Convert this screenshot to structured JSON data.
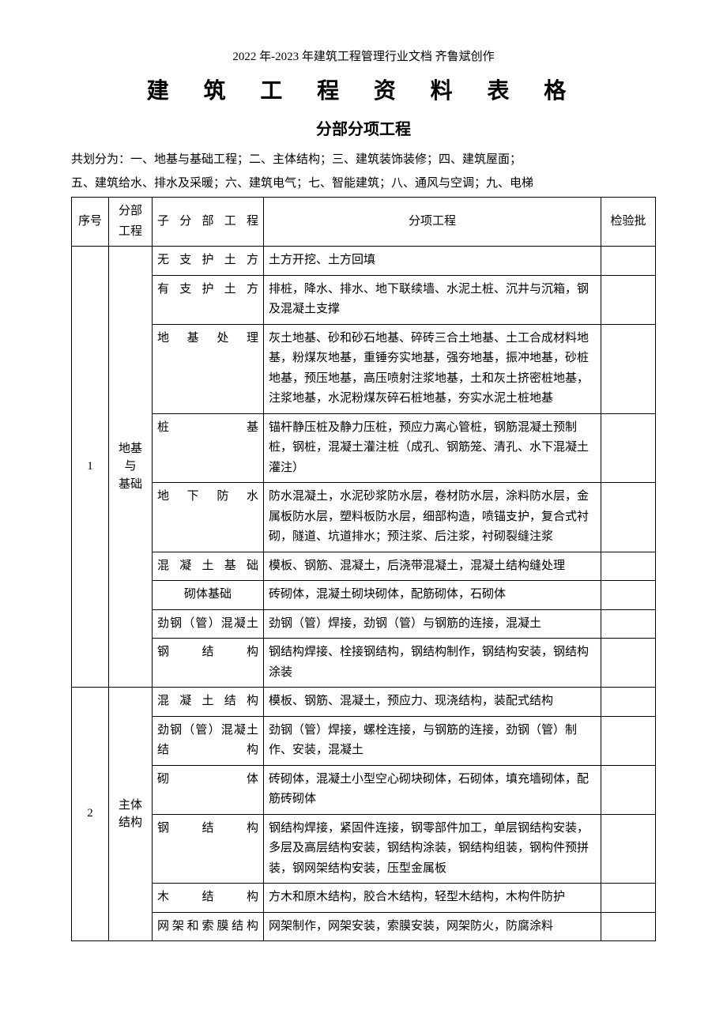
{
  "header_line": "2022 年-2023 年建筑工程管理行业文档  齐鲁斌创作",
  "title": "建 筑 工 程 资 料 表 格",
  "subtitle": "分部分项工程",
  "intro_line1": "共划分为：一、地基与基础工程；二、主体结构；三、建筑装饰装修；四、建筑屋面；",
  "intro_line2": "五、建筑给水、排水及采暖；六、建筑电气；七、智能建筑；八、通风与空调；九、电梯",
  "table": {
    "headers": {
      "seq": "序号",
      "main": "分部工程",
      "sub": "子分部工程",
      "item": "分项工程",
      "inspect": "检验批"
    },
    "section1": {
      "seq": "1",
      "main_l1": "地基",
      "main_l2": "与",
      "main_l3": "基础",
      "rows": [
        {
          "sub": "无支护土方",
          "item": "土方开挖、土方回填"
        },
        {
          "sub": "有支护土方",
          "item": "排桩，降水、排水、地下联续墙、水泥土桩、沉井与沉箱，钢及混凝土支撑"
        },
        {
          "sub": "地基处理",
          "item": "灰土地基、砂和砂石地基、碎砖三合土地基、土工合成材料地基，粉煤灰地基，重锤夯实地基，强夯地基，振冲地基，砂桩地基，预压地基，高压喷射注浆地基，土和灰土挤密桩地基，注浆地基，水泥粉煤灰碎石桩地基，夯实水泥土桩地基"
        },
        {
          "sub": "桩基",
          "item": "锚杆静压桩及静力压桩，预应力离心管桩，钢筋混凝土预制桩，钢桩，混凝土灌注桩（成孔、钢筋笼、清孔、水下混凝土灌注）"
        },
        {
          "sub": "地下防水",
          "item": "防水混凝土，水泥砂浆防水层，卷材防水层，涂料防水层，金属板防水层，塑料板防水层，细部构造，喷锚支护，复合式衬砌，隧道、坑道排水；预注浆、后注浆，衬砌裂缝注浆"
        },
        {
          "sub": "混凝土基础",
          "item": "模板、钢筋、混凝土，后浇带混凝土，混凝土结构缝处理"
        },
        {
          "sub": "砌体基础",
          "sub_center": true,
          "item": "砖砌体，混凝土砌块砌体，配筋砌体，石砌体"
        },
        {
          "sub": "劲钢（管）混凝土",
          "item": "劲钢（管）焊接，劲钢（管）与钢筋的连接，混凝土"
        },
        {
          "sub": "钢结构",
          "item": "钢结构焊接、栓接钢结构，钢结构制作，钢结构安装，钢结构涂装"
        }
      ]
    },
    "section2": {
      "seq": "2",
      "main_l1": "主体",
      "main_l2": "结构",
      "rows": [
        {
          "sub": "混凝土结构",
          "item": "模板、钢筋、混凝土，预应力、现浇结构，装配式结构"
        },
        {
          "sub": "劲钢（管）混凝土结构",
          "item": "劲钢（管）焊接，螺栓连接，与钢筋的连接，劲钢（管）制作、安装，混凝土"
        },
        {
          "sub": "砌体",
          "item": "砖砌体，混凝土小型空心砌块砌体，石砌体，填充墙砌体，配筋砖砌体"
        },
        {
          "sub": "钢结构",
          "item": "钢结构焊接，紧固件连接，钢零部件加工，单层钢结构安装，多层及高层结构安装，钢结构涂装，钢结构组装，钢构件预拼装，钢网架结构安装，压型金属板"
        },
        {
          "sub": "木结构",
          "item": "方木和原木结构，胶合木结构，轻型木结构，木构件防护"
        },
        {
          "sub": "网架和索膜结构",
          "item": "网架制作，网架安装，索膜安装，网架防火，防腐涂料"
        }
      ]
    }
  }
}
